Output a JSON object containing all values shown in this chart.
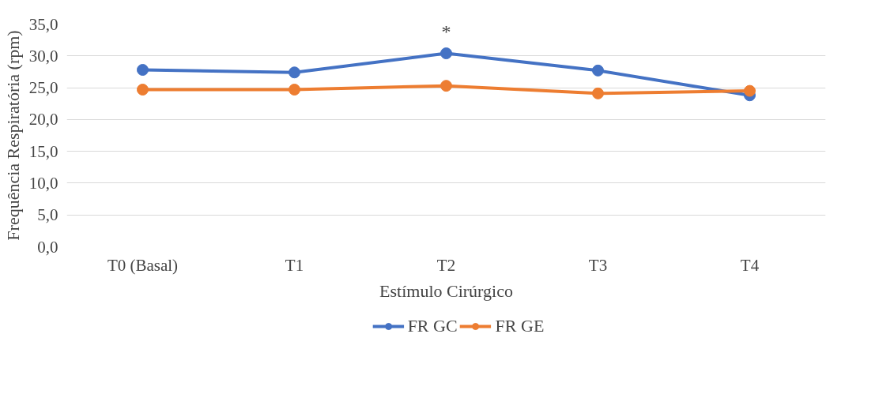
{
  "chart_data": {
    "type": "line",
    "xlabel": "Estímulo Cirúrgico",
    "ylabel": "Frequência Respiratória (rpm)",
    "categories": [
      "T0 (Basal)",
      "T1",
      "T2",
      "T3",
      "T4"
    ],
    "series": [
      {
        "name": "FR GC",
        "color": "#4472c4",
        "values": [
          27.8,
          27.4,
          30.4,
          27.7,
          23.8
        ]
      },
      {
        "name": "FR GE",
        "color": "#ed7d31",
        "values": [
          24.7,
          24.7,
          25.3,
          24.1,
          24.5
        ]
      }
    ],
    "ylim": [
      0,
      35
    ],
    "yticks": [
      {
        "value": 0,
        "label": "0,0"
      },
      {
        "value": 5,
        "label": "5,0"
      },
      {
        "value": 10,
        "label": "10,0"
      },
      {
        "value": 15,
        "label": "15,0"
      },
      {
        "value": 20,
        "label": "20,0"
      },
      {
        "value": 25,
        "label": "25,0"
      },
      {
        "value": 30,
        "label": "30,0"
      },
      {
        "value": 35,
        "label": "35,0"
      }
    ],
    "annotations": [
      "*"
    ],
    "grid": "y",
    "legend": "bottom",
    "marker": "circle",
    "line_style": "solid"
  }
}
